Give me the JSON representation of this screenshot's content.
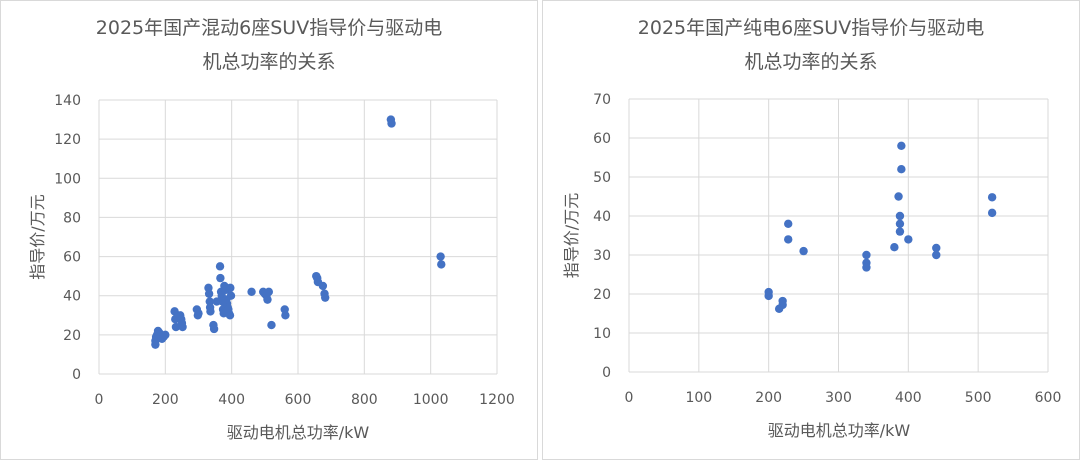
{
  "colors": {
    "marker": "#4472c4",
    "grid": "#d9d9d9",
    "text": "#595959"
  },
  "chart_data": [
    {
      "type": "scatter",
      "title_lines": [
        "2025年国产混动6座SUV指导价与驱动电",
        "机总功率的关系"
      ],
      "xlabel": "驱动电机总功率/kW",
      "ylabel": "指导价/万元",
      "xlim": [
        0,
        1200
      ],
      "ylim": [
        0,
        140
      ],
      "xticks": [
        0,
        200,
        400,
        600,
        800,
        1000,
        1200
      ],
      "yticks": [
        0,
        20,
        40,
        60,
        80,
        100,
        120,
        140
      ],
      "grid": true,
      "legend": "none",
      "points": [
        [
          170,
          15
        ],
        [
          170,
          17
        ],
        [
          172,
          19
        ],
        [
          175,
          20
        ],
        [
          178,
          22
        ],
        [
          182,
          21
        ],
        [
          185,
          20
        ],
        [
          190,
          18
        ],
        [
          195,
          19
        ],
        [
          200,
          20
        ],
        [
          228,
          32
        ],
        [
          230,
          28
        ],
        [
          232,
          24
        ],
        [
          245,
          30
        ],
        [
          248,
          28
        ],
        [
          250,
          26
        ],
        [
          252,
          24
        ],
        [
          295,
          33
        ],
        [
          298,
          30
        ],
        [
          300,
          31
        ],
        [
          330,
          44
        ],
        [
          332,
          41
        ],
        [
          334,
          37
        ],
        [
          335,
          34
        ],
        [
          336,
          32
        ],
        [
          345,
          25
        ],
        [
          347,
          23
        ],
        [
          355,
          37
        ],
        [
          365,
          55
        ],
        [
          366,
          49
        ],
        [
          368,
          42
        ],
        [
          370,
          40
        ],
        [
          372,
          37
        ],
        [
          374,
          33
        ],
        [
          376,
          31
        ],
        [
          378,
          45
        ],
        [
          380,
          44
        ],
        [
          382,
          43
        ],
        [
          384,
          38
        ],
        [
          386,
          36
        ],
        [
          388,
          34
        ],
        [
          390,
          33
        ],
        [
          392,
          31
        ],
        [
          395,
          30
        ],
        [
          396,
          44
        ],
        [
          398,
          40
        ],
        [
          460,
          42
        ],
        [
          495,
          42
        ],
        [
          500,
          41
        ],
        [
          505,
          40
        ],
        [
          508,
          38
        ],
        [
          512,
          42
        ],
        [
          520,
          25
        ],
        [
          560,
          33
        ],
        [
          562,
          30
        ],
        [
          655,
          50
        ],
        [
          658,
          49
        ],
        [
          660,
          47
        ],
        [
          675,
          45
        ],
        [
          680,
          41
        ],
        [
          682,
          39
        ],
        [
          880,
          130
        ],
        [
          882,
          128
        ],
        [
          1030,
          60
        ],
        [
          1032,
          56
        ]
      ]
    },
    {
      "type": "scatter",
      "title_lines": [
        "2025年国产纯电6座SUV指导价与驱动电",
        "机总功率的关系"
      ],
      "xlabel": "驱动电机总功率/kW",
      "ylabel": "指导价/万元",
      "xlim": [
        0,
        600
      ],
      "ylim": [
        0,
        70
      ],
      "xticks": [
        0,
        100,
        200,
        300,
        400,
        500,
        600
      ],
      "yticks": [
        0,
        10,
        20,
        30,
        40,
        50,
        60,
        70
      ],
      "grid": true,
      "legend": "none",
      "points": [
        [
          200,
          20.5
        ],
        [
          200,
          19.5
        ],
        [
          215,
          16.2
        ],
        [
          220,
          17.2
        ],
        [
          220,
          18.2
        ],
        [
          228,
          38
        ],
        [
          228,
          34
        ],
        [
          250,
          31
        ],
        [
          340,
          30
        ],
        [
          340,
          28
        ],
        [
          340,
          26.8
        ],
        [
          380,
          32
        ],
        [
          386,
          45
        ],
        [
          388,
          40
        ],
        [
          388,
          38
        ],
        [
          388,
          36
        ],
        [
          390,
          58
        ],
        [
          390,
          52
        ],
        [
          400,
          34
        ],
        [
          440,
          31.8
        ],
        [
          440,
          30
        ],
        [
          520,
          44.8
        ],
        [
          520,
          40.8
        ]
      ]
    }
  ]
}
